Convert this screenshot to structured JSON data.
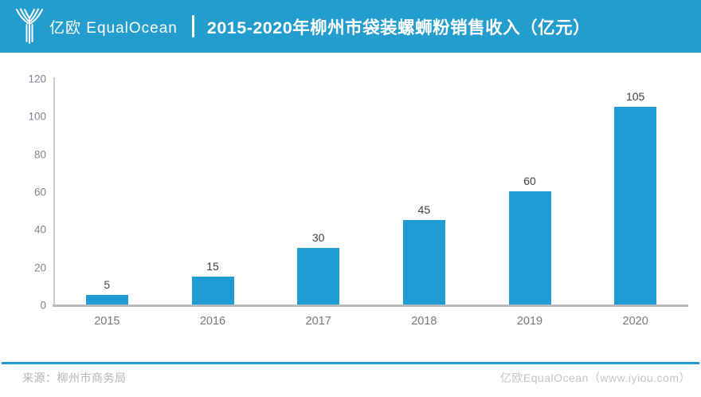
{
  "brand_colors": {
    "header_bg": "#239dce",
    "bar_fill": "#1e9cd3",
    "footer_line": "#2199cc"
  },
  "header": {
    "logo_text": "亿欧 EqualOcean",
    "title": "2015-2020年柳州市袋装螺蛳粉销售收入（亿元）"
  },
  "chart_data": {
    "type": "bar",
    "categories": [
      "2015",
      "2016",
      "2017",
      "2018",
      "2019",
      "2020"
    ],
    "values": [
      5,
      15,
      30,
      45,
      60,
      105
    ],
    "title": "2015-2020年柳州市袋装螺蛳粉销售收入（亿元）",
    "xlabel": "",
    "ylabel": "",
    "ylim": [
      0,
      120
    ],
    "yticks": [
      0,
      20,
      40,
      60,
      80,
      100,
      120
    ],
    "grid": false,
    "legend": "none",
    "data_labels": true,
    "bar_color": "#1e9cd3"
  },
  "footer": {
    "source": "来源：柳州市商务局",
    "brand": "亿欧EqualOcean（www.iyiou.com）"
  }
}
